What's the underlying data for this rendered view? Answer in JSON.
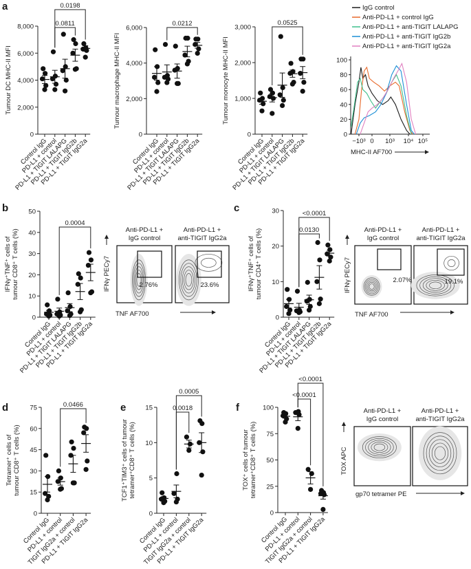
{
  "panel_letters": [
    "a",
    "b",
    "c",
    "d",
    "e",
    "f"
  ],
  "chart_data": [
    {
      "type": "scatter",
      "ylabel": [
        "Tumour DC MHC-II MFI"
      ],
      "ylim": [
        0,
        8000
      ],
      "yticks": [
        0,
        2000,
        4000,
        6000,
        8000
      ],
      "ytick_labels": [
        "0",
        "2,000",
        "4,000",
        "6,000",
        "8,000"
      ],
      "categories": [
        "Control IgG",
        "PD-L1 + control",
        "PD-L1 + TIGIT LALAPG",
        "PD-L1 + TIGIT IgG2b",
        "PD-L1 + TIGIT IgG2a"
      ],
      "points": [
        [
          3300,
          3600,
          4100,
          4500,
          4850
        ],
        [
          3300,
          3700,
          4100,
          4300,
          6100
        ],
        [
          3200,
          4000,
          4700,
          5000,
          7400
        ],
        [
          4800,
          4850,
          6000,
          6700,
          7000
        ],
        [
          5700,
          6200,
          6300,
          6400,
          6700
        ]
      ],
      "mean": [
        4050,
        4250,
        4850,
        5850,
        6350
      ],
      "sem": [
        300,
        480,
        700,
        450,
        200
      ],
      "comparisons": [
        {
          "from": 1,
          "to": 3,
          "p": "0.0811"
        },
        {
          "from": 1,
          "to": 4,
          "p": "0.0198"
        }
      ]
    },
    {
      "type": "scatter",
      "ylabel": [
        "Tumour macrophage MHC-II MFI"
      ],
      "ylim": [
        0,
        6000
      ],
      "yticks": [
        0,
        2000,
        4000,
        6000
      ],
      "ytick_labels": [
        "0",
        "2,000",
        "4,000",
        "6,000"
      ],
      "categories": [
        "Control IgG",
        "PD-L1 + control",
        "PD-L1 + TIGIT LALAPG",
        "PD-L1 + TIGIT IgG2b",
        "PD-L1 + TIGIT IgG2a"
      ],
      "points": [
        [
          2400,
          2900,
          3200,
          3800,
          4750
        ],
        [
          2900,
          3100,
          3200,
          3300,
          5050
        ],
        [
          2850,
          2850,
          3600,
          3700,
          4950
        ],
        [
          3950,
          4100,
          4450,
          5400,
          5400
        ],
        [
          4550,
          4800,
          5050,
          5350,
          5350
        ]
      ],
      "mean": [
        3420,
        3500,
        3550,
        4650,
        5000
      ],
      "sem": [
        380,
        400,
        400,
        300,
        160
      ],
      "comparisons": [
        {
          "from": 1,
          "to": 4,
          "p": "0.0212"
        }
      ]
    },
    {
      "type": "scatter",
      "ylabel": [
        "Tumour monocyte MHC-II MFI"
      ],
      "ylim": [
        0,
        3000
      ],
      "yticks": [
        0,
        1000,
        2000,
        3000
      ],
      "ytick_labels": [
        "0",
        "1,000",
        "2,000",
        "3,000"
      ],
      "categories": [
        "Control IgG",
        "PD-L1 + control",
        "PD-L1 + TIGIT LALAPG",
        "PD-L1 + TIGIT IgG2b",
        "PD-L1 + TIGIT IgG2a"
      ],
      "points": [
        [
          650,
          850,
          950,
          1000,
          1150
        ],
        [
          580,
          1000,
          1050,
          1150,
          1250
        ],
        [
          800,
          950,
          1100,
          1300,
          2730
        ],
        [
          1400,
          1450,
          1700,
          1750,
          1980
        ],
        [
          1200,
          1450,
          1700,
          2100,
          2100
        ]
      ],
      "mean": [
        920,
        1020,
        1370,
        1690,
        1720
      ],
      "sem": [
        85,
        120,
        340,
        100,
        170
      ],
      "comparisons": [
        {
          "from": 1,
          "to": 4,
          "p": "0.0525"
        }
      ]
    },
    {
      "type": "line",
      "xlabel": "MHC-II AF700",
      "xtick_labels": [
        "−10³",
        "0",
        "10³",
        "10⁴",
        "10⁵"
      ],
      "ylim": [
        0,
        100
      ],
      "yticks": [
        0,
        20,
        40,
        60,
        80,
        100
      ],
      "ytick_labels": [
        "0",
        "20",
        "40",
        "60",
        "80",
        "100"
      ],
      "legend_position": "top",
      "series": [
        {
          "name": "IgG control",
          "color": "#1a1a1a",
          "points": [
            [
              -0.6,
              0
            ],
            [
              -0.3,
              40
            ],
            [
              0,
              70
            ],
            [
              0.15,
              90
            ],
            [
              0.3,
              75
            ],
            [
              0.5,
              80
            ],
            [
              0.7,
              65
            ],
            [
              1,
              55
            ],
            [
              1.3,
              45
            ],
            [
              1.6,
              40
            ],
            [
              1.9,
              45
            ],
            [
              2.05,
              50
            ],
            [
              2.3,
              40
            ],
            [
              2.6,
              20
            ],
            [
              2.9,
              5
            ],
            [
              3.1,
              0
            ]
          ]
        },
        {
          "name": "Anti-PD-L1 + control IgG",
          "color": "#e8692a",
          "points": [
            [
              -0.3,
              0
            ],
            [
              0,
              20
            ],
            [
              0.2,
              60
            ],
            [
              0.4,
              85
            ],
            [
              0.6,
              90
            ],
            [
              0.8,
              75
            ],
            [
              1.1,
              70
            ],
            [
              1.4,
              65
            ],
            [
              1.7,
              58
            ],
            [
              2.0,
              65
            ],
            [
              2.3,
              70
            ],
            [
              2.5,
              65
            ],
            [
              2.8,
              30
            ],
            [
              3.1,
              5
            ],
            [
              3.3,
              0
            ]
          ]
        },
        {
          "name": "Anti-PD-L1 + anti-TIGIT LALAPG",
          "color": "#3dbf8a",
          "points": [
            [
              -0.6,
              10
            ],
            [
              -0.3,
              45
            ],
            [
              -0.1,
              70
            ],
            [
              0.1,
              75
            ],
            [
              0.3,
              60
            ],
            [
              0.6,
              55
            ],
            [
              0.9,
              45
            ],
            [
              1.2,
              35
            ],
            [
              1.5,
              45
            ],
            [
              1.8,
              55
            ],
            [
              2.1,
              70
            ],
            [
              2.35,
              80
            ],
            [
              2.6,
              65
            ],
            [
              2.9,
              25
            ],
            [
              3.2,
              0
            ]
          ]
        },
        {
          "name": "Anti-PD-L1 + anti-TIGIT IgG2b",
          "color": "#1a8fd6",
          "points": [
            [
              -0.2,
              0
            ],
            [
              0.1,
              15
            ],
            [
              0.4,
              22
            ],
            [
              0.8,
              25
            ],
            [
              1.2,
              30
            ],
            [
              1.5,
              40
            ],
            [
              1.8,
              55
            ],
            [
              2.1,
              80
            ],
            [
              2.35,
              92
            ],
            [
              2.6,
              85
            ],
            [
              2.9,
              40
            ],
            [
              3.2,
              5
            ],
            [
              3.4,
              0
            ]
          ]
        },
        {
          "name": "Anti-PD-L1 + anti-TIGIT IgG2a",
          "color": "#e07fc0",
          "points": [
            [
              0.1,
              0
            ],
            [
              0.4,
              15
            ],
            [
              0.7,
              30
            ],
            [
              1.0,
              35
            ],
            [
              1.3,
              40
            ],
            [
              1.6,
              48
            ],
            [
              1.9,
              60
            ],
            [
              2.2,
              75
            ],
            [
              2.5,
              88
            ],
            [
              2.65,
              95
            ],
            [
              2.9,
              70
            ],
            [
              3.2,
              20
            ],
            [
              3.5,
              0
            ]
          ]
        }
      ]
    },
    {
      "type": "scatter",
      "ylabel": [
        "IFNγ⁺TNF⁺ cells of",
        "tumour CD8⁺ T cells (%)"
      ],
      "ylim": [
        0,
        50
      ],
      "yticks": [
        0,
        10,
        20,
        30,
        40,
        50
      ],
      "ytick_labels": [
        "0",
        "10",
        "20",
        "30",
        "40",
        "50"
      ],
      "categories": [
        "Control IgG",
        "PD-L1 + control",
        "PD-L1 + TIGIT LALAPG",
        "PD-L1 + TIGIT IgG2b",
        "PD-L1 + TIGIT IgG2a"
      ],
      "points": [
        [
          0.5,
          1,
          1.5,
          3,
          5.8
        ],
        [
          0.5,
          1,
          1.5,
          2.5,
          8.5
        ],
        [
          0.8,
          1.5,
          3,
          5,
          11.5
        ],
        [
          2.5,
          3.5,
          15.5,
          18.5,
          20.5
        ],
        [
          11.5,
          12,
          24.5,
          27,
          30.5
        ]
      ],
      "mean": [
        2.3,
        2.8,
        4.5,
        12.1,
        21.1
      ],
      "sem": [
        0.9,
        1.5,
        1.9,
        3.8,
        3.9
      ],
      "comparisons": [
        {
          "from": 1,
          "to": 4,
          "p": "0.0004"
        }
      ]
    },
    {
      "type": "scatter",
      "ylabel": [
        "IFNγ⁺TNF⁺ cells of",
        "tumour CD4⁺ T cells (%)"
      ],
      "ylim": [
        0,
        30
      ],
      "yticks": [
        0,
        10,
        20,
        30
      ],
      "ytick_labels": [
        "0",
        "10",
        "20",
        "30"
      ],
      "categories": [
        "Control IgG",
        "PD-L1 + control",
        "PD-L1 + TIGIT LALAPG",
        "PD-L1 + TIGIT IgG2b",
        "PD-L1 + TIGIT IgG2a"
      ],
      "points": [
        [
          1,
          2,
          3,
          5,
          7.8
        ],
        [
          1.3,
          1.5,
          1.8,
          2,
          7.3
        ],
        [
          2,
          3,
          4.5,
          5,
          9.8
        ],
        [
          3.8,
          5.1,
          10,
          16.1,
          21
        ],
        [
          15.8,
          16.9,
          17.8,
          19,
          20.3
        ]
      ],
      "mean": [
        3.8,
        2.8,
        4.9,
        11.2,
        18
      ],
      "sem": [
        1.2,
        1.1,
        1.3,
        3.3,
        0.8
      ],
      "comparisons": [
        {
          "from": 1,
          "to": 3,
          "p": "0.0130"
        },
        {
          "from": 1,
          "to": 4,
          "p": "<0.0001"
        }
      ]
    },
    {
      "type": "scatter",
      "ylabel": [
        "Tetramer⁺ cells of",
        "tumour CD8⁺ T cells (%)"
      ],
      "ylim": [
        0,
        75
      ],
      "yticks": [
        0,
        15,
        30,
        45,
        60,
        75
      ],
      "ytick_labels": [
        "0",
        "15",
        "30",
        "45",
        "60",
        "75"
      ],
      "categories": [
        "Control IgG",
        "PD-L1 + control",
        "TIGIT IgG2a + control",
        "PD-L1 + TIGIT IgG2a"
      ],
      "points": [
        [
          9.5,
          12,
          14,
          26,
          41
        ],
        [
          17,
          17.5,
          22.5,
          25,
          30
        ],
        [
          21.5,
          21.5,
          41,
          46,
          50.5
        ],
        [
          31,
          37,
          57,
          60,
          61
        ]
      ],
      "mean": [
        20.5,
        22.4,
        35,
        49.4
      ],
      "sem": [
        5.5,
        2.5,
        6,
        6.2
      ],
      "comparisons": [
        {
          "from": 1,
          "to": 3,
          "p": "0.0466"
        }
      ]
    },
    {
      "type": "scatter",
      "ylabel": [
        "TCF1⁺TIM3⁺ cells of tumour",
        "tetramer⁺CD8⁺ T cells (%)"
      ],
      "ylim": [
        0,
        15
      ],
      "yticks": [
        0,
        5,
        10,
        15
      ],
      "ytick_labels": [
        "0",
        "5",
        "10",
        "15"
      ],
      "categories": [
        "Control IgG",
        "PD-L1 + control",
        "TIGIT IgG2a + control",
        "PD-L1 + TIGIT IgG2a"
      ],
      "points": [
        [
          1.5,
          1.7,
          2,
          2.2,
          2.9
        ],
        [
          1.6,
          2,
          2.8,
          5.6
        ],
        [
          8.9,
          9.8,
          10.8
        ],
        [
          5.4,
          8.7,
          10,
          12.7,
          13.1
        ]
      ],
      "mean": [
        2.1,
        3.1,
        9.8,
        10
      ],
      "sem": [
        0.25,
        0.9,
        0.55,
        1.4
      ],
      "comparisons": [
        {
          "from": 1,
          "to": 2,
          "p": "0.0018"
        },
        {
          "from": 1,
          "to": 3,
          "p": "0.0005"
        }
      ]
    },
    {
      "type": "scatter",
      "ylabel": [
        "TOX⁺ cells of tumour",
        "tetramer⁺CD8⁺ T cells (%)"
      ],
      "ylim": [
        0,
        100
      ],
      "yticks": [
        0,
        25,
        50,
        75,
        100
      ],
      "ytick_labels": [
        "0",
        "25",
        "50",
        "75",
        "100"
      ],
      "categories": [
        "Control IgG",
        "PD-L1 + control",
        "TIGIT IgG2a + control",
        "PD-L1 + TIGIT IgG2a"
      ],
      "points": [
        [
          86,
          89,
          92,
          94,
          95
        ],
        [
          80,
          93,
          95,
          96
        ],
        [
          22,
          37,
          41
        ],
        [
          3,
          17,
          18,
          19,
          21
        ]
      ],
      "mean": [
        91.5,
        91,
        33,
        16
      ],
      "sem": [
        1.8,
        3.7,
        5.8,
        3.2
      ],
      "comparisons": [
        {
          "from": 1,
          "to": 2,
          "p": "<0.0001"
        },
        {
          "from": 1,
          "to": 3,
          "p": "<0.0001"
        }
      ]
    }
  ],
  "flow_panels": [
    {
      "ylabel": "IFNγ PECy7",
      "xlabel": "TNF AF700",
      "plots": [
        {
          "title": [
            "Anti-PD-L1 +",
            "IgG control"
          ],
          "gate_percent": "2.76%"
        },
        {
          "title": [
            "Anti-PD-L1 +",
            "anti-TIGIT IgG2a"
          ],
          "gate_percent": "23.6%"
        }
      ]
    },
    {
      "ylabel": "IFNγ PECy7",
      "xlabel": "TNF AF700",
      "plots": [
        {
          "title": [
            "Anti-PD-L1 +",
            "IgG control"
          ],
          "gate_percent": "2.07%"
        },
        {
          "title": [
            "Anti-PD-L1 +",
            "anti-TIGIT IgG2a"
          ],
          "gate_percent": "19.1%"
        }
      ]
    },
    {
      "ylabel": "TOX APC",
      "xlabel": "gp70 tetramer PE",
      "plots": [
        {
          "title": [
            "Anti-PD-L1 +",
            "IgG control"
          ]
        },
        {
          "title": [
            "Anti-PD-L1 +",
            "anti-TIGIT IgG2a"
          ]
        }
      ]
    }
  ]
}
